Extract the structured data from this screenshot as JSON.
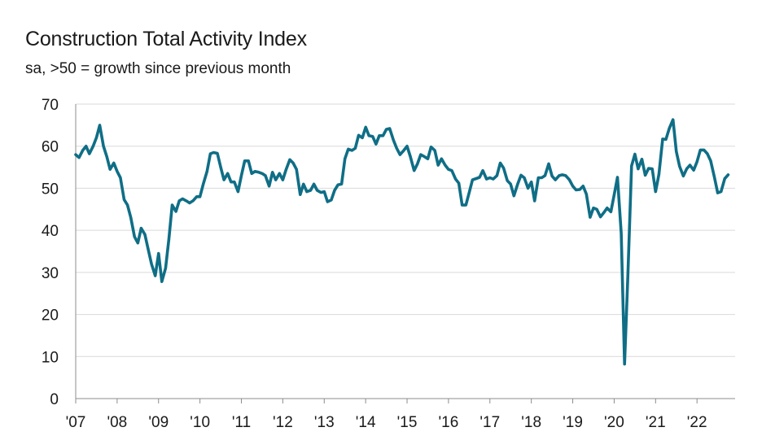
{
  "chart_data": {
    "type": "line",
    "title": "Construction Total Activity Index",
    "subtitle": "sa, >50 = growth since previous month",
    "ylim": [
      0,
      70
    ],
    "y_ticks": [
      0,
      10,
      20,
      30,
      40,
      50,
      60,
      70
    ],
    "xlim": [
      2007.0,
      2022.92
    ],
    "x_ticks": [
      {
        "value": 2007,
        "label": "'07"
      },
      {
        "value": 2008,
        "label": "'08"
      },
      {
        "value": 2009,
        "label": "'09"
      },
      {
        "value": 2010,
        "label": "'10"
      },
      {
        "value": 2011,
        "label": "'11"
      },
      {
        "value": 2012,
        "label": "'12"
      },
      {
        "value": 2013,
        "label": "'13"
      },
      {
        "value": 2014,
        "label": "'14"
      },
      {
        "value": 2015,
        "label": "'15"
      },
      {
        "value": 2016,
        "label": "'16"
      },
      {
        "value": 2017,
        "label": "'17"
      },
      {
        "value": 2018,
        "label": "'18"
      },
      {
        "value": 2019,
        "label": "'19"
      },
      {
        "value": 2020,
        "label": "'20"
      },
      {
        "value": 2021,
        "label": "'21"
      },
      {
        "value": 2022,
        "label": "'22"
      }
    ],
    "grid": true,
    "series": [
      {
        "color": "#0f6e86",
        "points": [
          [
            2007.0,
            58
          ],
          [
            2007.08,
            57.3
          ],
          [
            2007.17,
            59
          ],
          [
            2007.25,
            60
          ],
          [
            2007.33,
            58.2
          ],
          [
            2007.42,
            60
          ],
          [
            2007.5,
            62
          ],
          [
            2007.58,
            65
          ],
          [
            2007.67,
            60
          ],
          [
            2007.75,
            57.5
          ],
          [
            2007.83,
            54.5
          ],
          [
            2007.92,
            56
          ],
          [
            2008.0,
            54
          ],
          [
            2008.08,
            52.5
          ],
          [
            2008.17,
            47.3
          ],
          [
            2008.25,
            46
          ],
          [
            2008.33,
            43
          ],
          [
            2008.42,
            38.5
          ],
          [
            2008.5,
            37
          ],
          [
            2008.58,
            40.5
          ],
          [
            2008.67,
            39
          ],
          [
            2008.75,
            35.5
          ],
          [
            2008.83,
            32
          ],
          [
            2008.92,
            29.2
          ],
          [
            2009.0,
            34.5
          ],
          [
            2009.08,
            27.8
          ],
          [
            2009.17,
            31
          ],
          [
            2009.25,
            38
          ],
          [
            2009.33,
            46
          ],
          [
            2009.42,
            44.5
          ],
          [
            2009.5,
            47
          ],
          [
            2009.58,
            47.5
          ],
          [
            2009.67,
            47
          ],
          [
            2009.75,
            46.5
          ],
          [
            2009.83,
            47
          ],
          [
            2009.92,
            48
          ],
          [
            2010.0,
            48
          ],
          [
            2010.08,
            51
          ],
          [
            2010.17,
            54
          ],
          [
            2010.25,
            58.2
          ],
          [
            2010.33,
            58.5
          ],
          [
            2010.42,
            58.3
          ],
          [
            2010.5,
            55
          ],
          [
            2010.58,
            52
          ],
          [
            2010.67,
            53.5
          ],
          [
            2010.75,
            51.5
          ],
          [
            2010.83,
            51.5
          ],
          [
            2010.92,
            49.2
          ],
          [
            2011.0,
            53
          ],
          [
            2011.08,
            56.5
          ],
          [
            2011.17,
            56.5
          ],
          [
            2011.25,
            53.5
          ],
          [
            2011.33,
            54
          ],
          [
            2011.42,
            53.8
          ],
          [
            2011.5,
            53.5
          ],
          [
            2011.58,
            53
          ],
          [
            2011.67,
            50.5
          ],
          [
            2011.75,
            53.8
          ],
          [
            2011.83,
            52
          ],
          [
            2011.92,
            53.5
          ],
          [
            2012.0,
            52
          ],
          [
            2012.08,
            54.5
          ],
          [
            2012.17,
            56.8
          ],
          [
            2012.25,
            56
          ],
          [
            2012.33,
            54.5
          ],
          [
            2012.42,
            48.5
          ],
          [
            2012.5,
            51
          ],
          [
            2012.58,
            49.2
          ],
          [
            2012.67,
            49.5
          ],
          [
            2012.75,
            51
          ],
          [
            2012.83,
            49.5
          ],
          [
            2012.92,
            49
          ],
          [
            2013.0,
            49.2
          ],
          [
            2013.08,
            46.8
          ],
          [
            2013.17,
            47.2
          ],
          [
            2013.25,
            49.5
          ],
          [
            2013.33,
            50.8
          ],
          [
            2013.42,
            51
          ],
          [
            2013.5,
            57
          ],
          [
            2013.58,
            59.3
          ],
          [
            2013.67,
            59
          ],
          [
            2013.75,
            59.5
          ],
          [
            2013.83,
            62.6
          ],
          [
            2013.92,
            62
          ],
          [
            2014.0,
            64.5
          ],
          [
            2014.08,
            62.5
          ],
          [
            2014.17,
            62.3
          ],
          [
            2014.25,
            60.5
          ],
          [
            2014.33,
            62.5
          ],
          [
            2014.42,
            62.5
          ],
          [
            2014.5,
            64
          ],
          [
            2014.58,
            64.2
          ],
          [
            2014.67,
            61.5
          ],
          [
            2014.75,
            59.5
          ],
          [
            2014.83,
            58
          ],
          [
            2014.92,
            59
          ],
          [
            2015.0,
            60
          ],
          [
            2015.08,
            57.5
          ],
          [
            2015.17,
            54.2
          ],
          [
            2015.25,
            55.8
          ],
          [
            2015.33,
            58
          ],
          [
            2015.42,
            57.5
          ],
          [
            2015.5,
            57
          ],
          [
            2015.58,
            59.8
          ],
          [
            2015.67,
            59
          ],
          [
            2015.75,
            55.5
          ],
          [
            2015.83,
            57
          ],
          [
            2015.92,
            55.5
          ],
          [
            2016.0,
            54.5
          ],
          [
            2016.08,
            54.2
          ],
          [
            2016.17,
            52.2
          ],
          [
            2016.25,
            51.2
          ],
          [
            2016.33,
            46
          ],
          [
            2016.42,
            46
          ],
          [
            2016.5,
            49
          ],
          [
            2016.58,
            52
          ],
          [
            2016.67,
            52.3
          ],
          [
            2016.75,
            52.6
          ],
          [
            2016.83,
            54.2
          ],
          [
            2016.92,
            52.2
          ],
          [
            2017.0,
            52.5
          ],
          [
            2017.08,
            52.2
          ],
          [
            2017.17,
            53
          ],
          [
            2017.25,
            56
          ],
          [
            2017.33,
            54.8
          ],
          [
            2017.42,
            51.8
          ],
          [
            2017.5,
            51
          ],
          [
            2017.58,
            48.2
          ],
          [
            2017.67,
            51
          ],
          [
            2017.75,
            53.1
          ],
          [
            2017.83,
            52.5
          ],
          [
            2017.92,
            50
          ],
          [
            2018.0,
            51.5
          ],
          [
            2018.08,
            47
          ],
          [
            2018.17,
            52.5
          ],
          [
            2018.25,
            52.5
          ],
          [
            2018.33,
            53
          ],
          [
            2018.42,
            55.8
          ],
          [
            2018.5,
            52.9
          ],
          [
            2018.58,
            52
          ],
          [
            2018.67,
            53
          ],
          [
            2018.75,
            53.2
          ],
          [
            2018.83,
            53
          ],
          [
            2018.92,
            52
          ],
          [
            2019.0,
            50.5
          ],
          [
            2019.08,
            49.6
          ],
          [
            2019.17,
            49.7
          ],
          [
            2019.25,
            50.5
          ],
          [
            2019.33,
            48.6
          ],
          [
            2019.42,
            43.1
          ],
          [
            2019.5,
            45.3
          ],
          [
            2019.58,
            45
          ],
          [
            2019.67,
            43.2
          ],
          [
            2019.75,
            44.2
          ],
          [
            2019.83,
            45.3
          ],
          [
            2019.92,
            44.4
          ],
          [
            2020.0,
            48.4
          ],
          [
            2020.08,
            52.6
          ],
          [
            2020.17,
            39.3
          ],
          [
            2020.25,
            8.2
          ],
          [
            2020.33,
            28.9
          ],
          [
            2020.42,
            55.3
          ],
          [
            2020.5,
            58.1
          ],
          [
            2020.58,
            54.6
          ],
          [
            2020.67,
            56.9
          ],
          [
            2020.75,
            53.1
          ],
          [
            2020.83,
            54.7
          ],
          [
            2020.92,
            54.6
          ],
          [
            2021.0,
            49.2
          ],
          [
            2021.08,
            53.3
          ],
          [
            2021.17,
            61.7
          ],
          [
            2021.25,
            61.6
          ],
          [
            2021.33,
            64.2
          ],
          [
            2021.42,
            66.3
          ],
          [
            2021.5,
            58.7
          ],
          [
            2021.58,
            55.2
          ],
          [
            2021.67,
            52.9
          ],
          [
            2021.75,
            54.6
          ],
          [
            2021.83,
            55.5
          ],
          [
            2021.92,
            54.3
          ],
          [
            2022.0,
            56.3
          ],
          [
            2022.08,
            59.1
          ],
          [
            2022.17,
            59.1
          ],
          [
            2022.25,
            58.2
          ],
          [
            2022.33,
            56.5
          ],
          [
            2022.42,
            52.6
          ],
          [
            2022.5,
            48.9
          ],
          [
            2022.58,
            49.2
          ],
          [
            2022.67,
            52.3
          ],
          [
            2022.75,
            53.2
          ]
        ]
      }
    ]
  }
}
